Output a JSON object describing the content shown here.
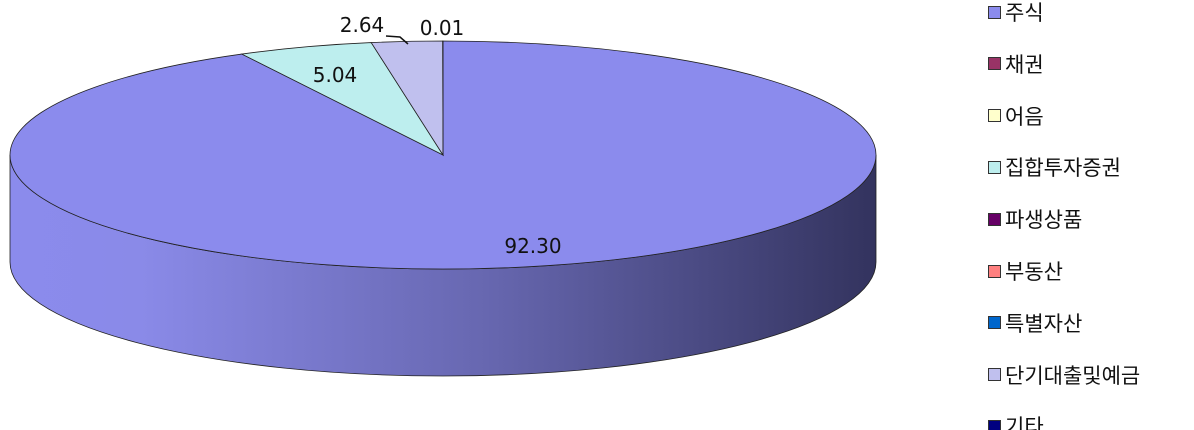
{
  "chart_data": {
    "type": "pie",
    "categories": [
      "주식",
      "채권",
      "어음",
      "집합투자증권",
      "파생상품",
      "부동산",
      "특별자산",
      "단기대출및예금",
      "기타"
    ],
    "values": [
      92.3,
      0,
      0,
      5.04,
      0,
      0,
      0,
      2.64,
      0.01
    ],
    "data_labels": [
      "92.30",
      "",
      "",
      "5.04",
      "",
      "",
      "",
      "2.64",
      "0.01"
    ],
    "colors": [
      "#8b8bed",
      "#993366",
      "#ffffcc",
      "#bdeeee",
      "#660066",
      "#ff8080",
      "#0066cc",
      "#c0c0ee",
      "#000080"
    ],
    "title": "",
    "legend": "right",
    "style": "3d"
  }
}
